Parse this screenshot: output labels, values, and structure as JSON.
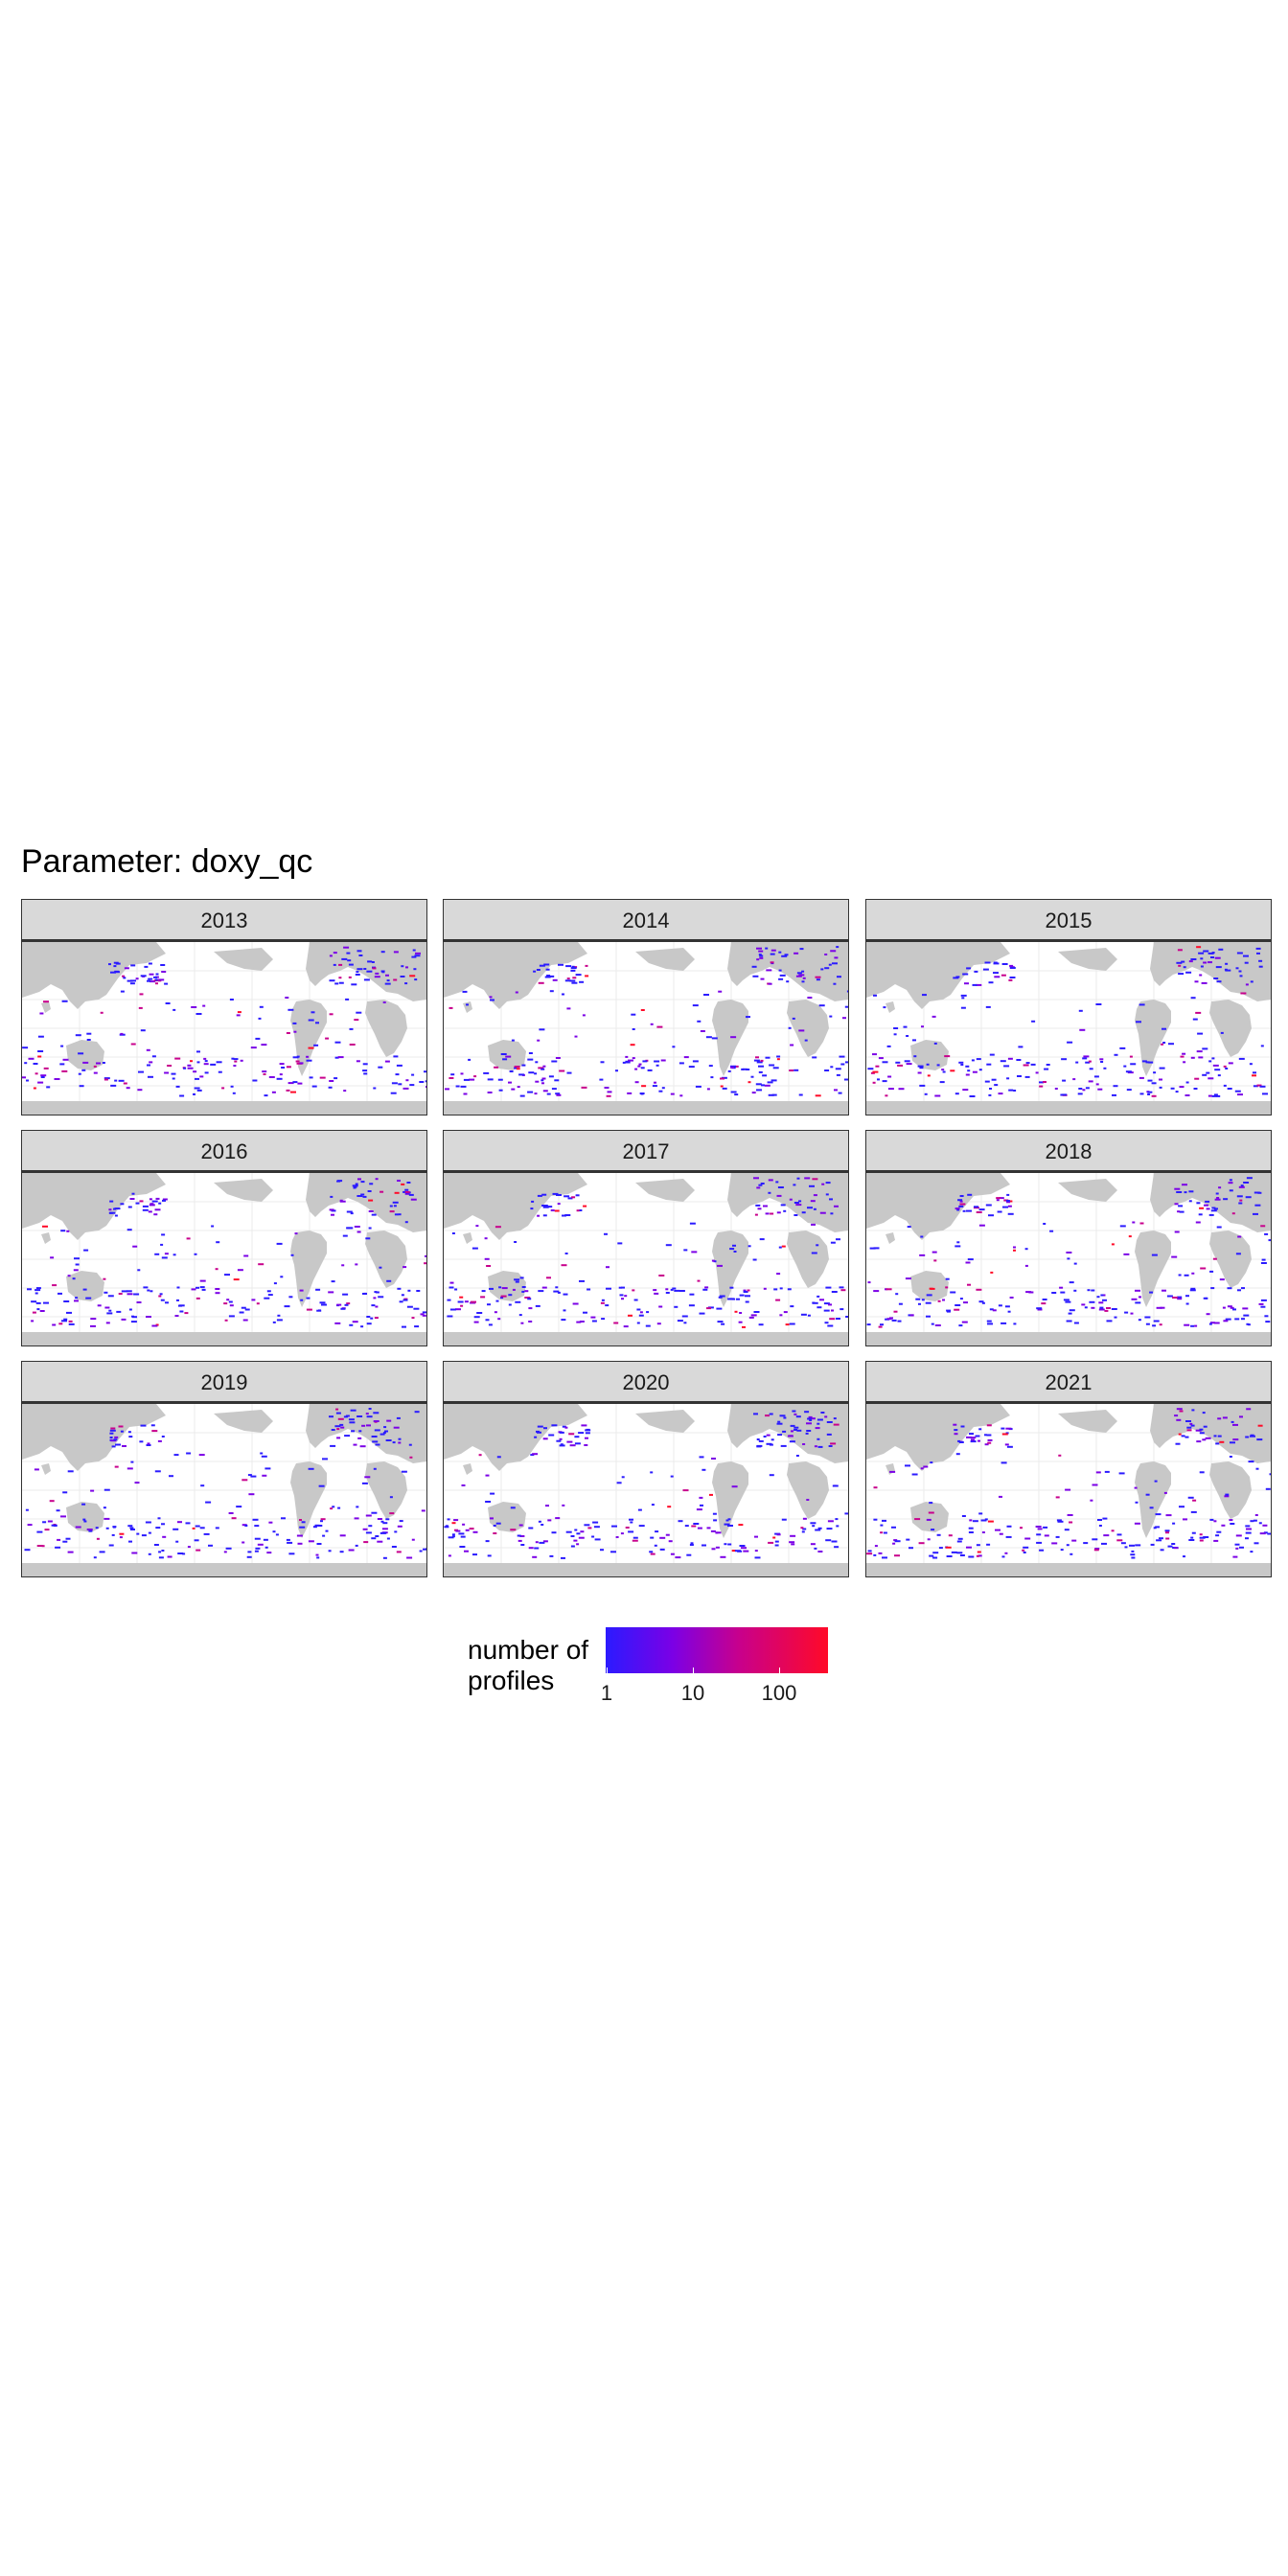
{
  "title": "Parameter: doxy_qc",
  "chart_data": {
    "type": "map",
    "title": "Parameter: doxy_qc",
    "facets": [
      "2013",
      "2014",
      "2015",
      "2016",
      "2017",
      "2018",
      "2019",
      "2020",
      "2021"
    ],
    "legend": {
      "title_line1": "number of",
      "title_line2": "profiles",
      "scale": "log",
      "ticks": [
        "1",
        "10",
        "100"
      ],
      "tick_values": [
        1,
        10,
        100
      ],
      "range": [
        1,
        300
      ],
      "colors": [
        "#2b1bff",
        "#7b00e6",
        "#c8008c",
        "#ff0a28"
      ],
      "position": "bottom"
    },
    "land_color": "#c8c8c8",
    "ocean_color": "#ffffff",
    "strip_color": "#d9d9d9"
  }
}
